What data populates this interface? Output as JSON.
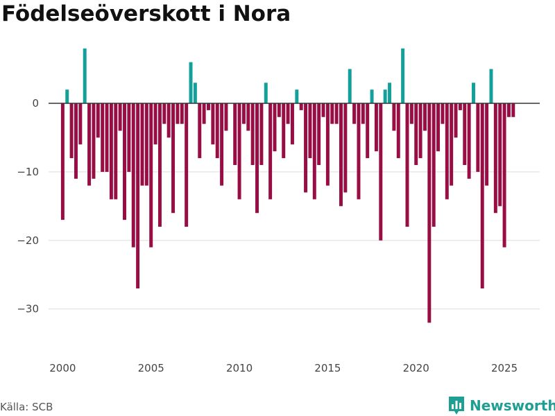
{
  "title": "Födelseöverskott i Nora",
  "source": "Källa: SCB",
  "brand": "Newsworthy",
  "colors": {
    "positive": "#14a09a",
    "negative": "#970d44",
    "grid": "#dddddd",
    "axis": "#333333",
    "tick": "#444444",
    "brand": "#1f9e94"
  },
  "chart_data": {
    "type": "bar",
    "title": "Födelseöverskott i Nora",
    "xlabel": "",
    "ylabel": "",
    "ylim": [
      -36,
      9
    ],
    "xlim": [
      1999.2,
      2027.0
    ],
    "yticks": [
      0,
      -10,
      -20,
      -30
    ],
    "ytick_labels": [
      "0",
      "−10",
      "−20",
      "−30"
    ],
    "xticks": [
      2000,
      2005,
      2010,
      2015,
      2020,
      2025
    ],
    "xtick_labels": [
      "2000",
      "2005",
      "2010",
      "2015",
      "2020",
      "2025"
    ],
    "frequency": "quarterly",
    "start": 2000.0,
    "step": 0.25,
    "values": [
      -17,
      2,
      -8,
      -11,
      -6,
      8,
      -12,
      -11,
      -5,
      -10,
      -10,
      -14,
      -14,
      -4,
      -17,
      -10,
      -21,
      -27,
      -12,
      -12,
      -21,
      -6,
      -18,
      -3,
      -5,
      -16,
      -3,
      -3,
      -18,
      6,
      3,
      -8,
      -3,
      -1,
      -6,
      -8,
      -12,
      -4,
      0,
      -9,
      -14,
      -3,
      -4,
      -9,
      -16,
      -9,
      3,
      -14,
      -7,
      -2,
      -8,
      -3,
      -6,
      2,
      -1,
      -13,
      -8,
      -14,
      -9,
      -2,
      -12,
      -3,
      -3,
      -15,
      -13,
      5,
      -3,
      -14,
      -3,
      -8,
      2,
      -7,
      -20,
      2,
      3,
      -4,
      -8,
      8,
      -18,
      -3,
      -9,
      -8,
      -4,
      -32,
      -18,
      -7,
      -3,
      -14,
      -12,
      -5,
      -1,
      -9,
      -11,
      3,
      -10,
      -27,
      -12,
      5,
      -16,
      -15,
      -21,
      -2,
      -2
    ]
  }
}
